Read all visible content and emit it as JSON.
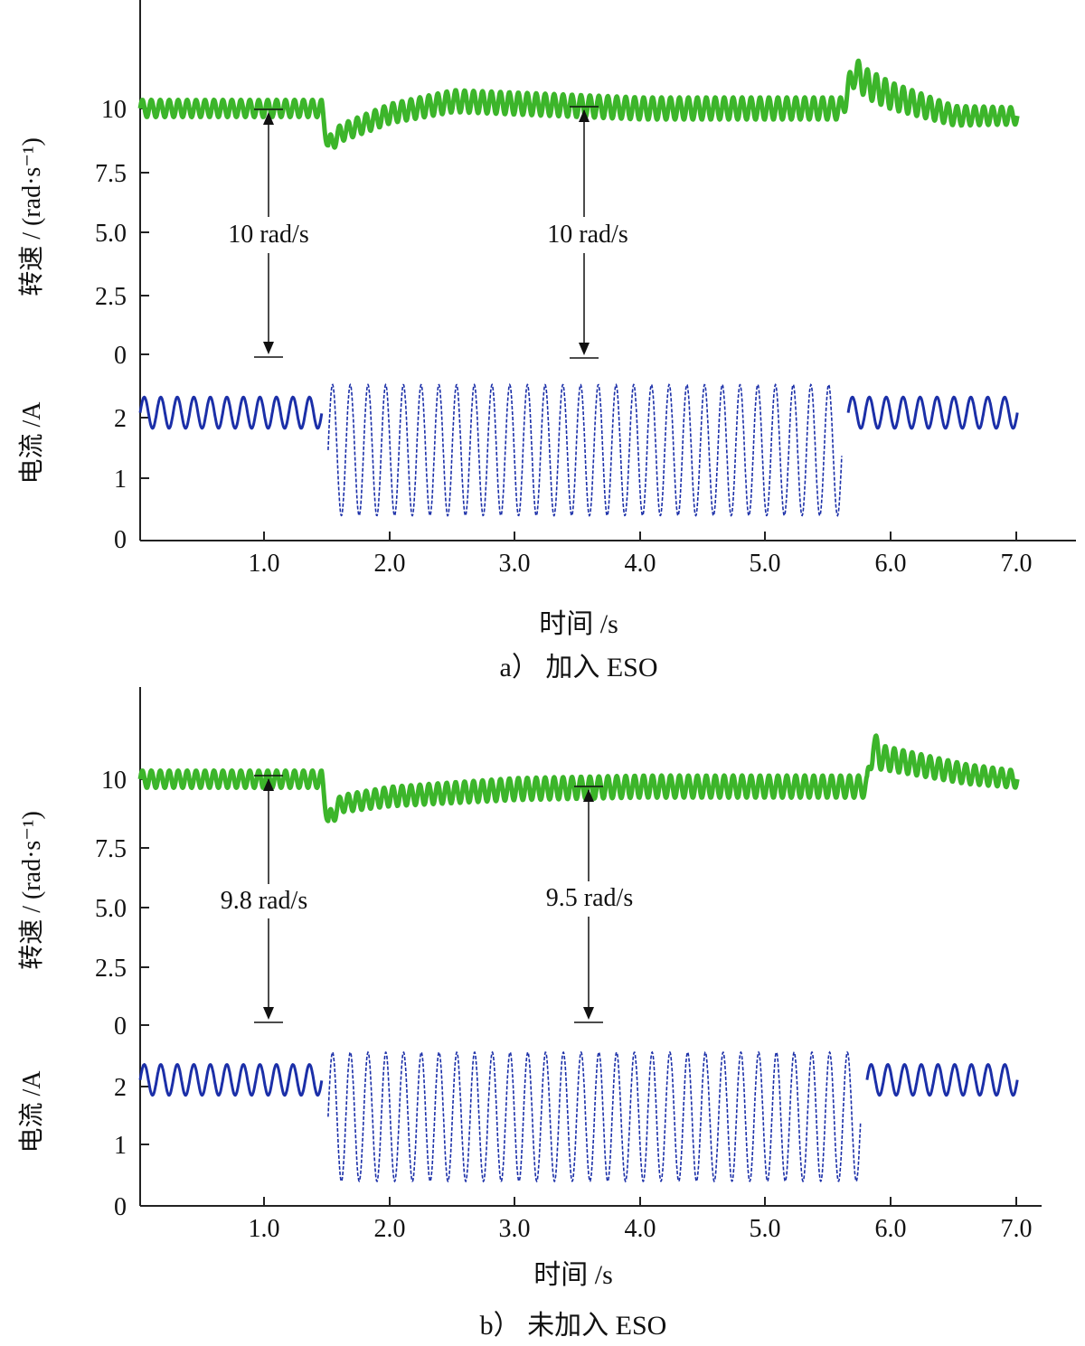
{
  "chart_data": [
    {
      "type": "line",
      "caption": "a） 加入 ESO",
      "xlabel": "时间 /s",
      "ylabel_speed": "转速 / (rad·s⁻¹)",
      "ylabel_current": "电流 /A",
      "xlim": [
        0.0,
        7.2
      ],
      "x_ticks": [
        "1.0",
        "2.0",
        "3.0",
        "4.0",
        "5.0",
        "6.0",
        "7.0"
      ],
      "speed_ticks": [
        "10",
        "7.5",
        "5.0",
        "2.5",
        "0"
      ],
      "current_ticks": [
        "2",
        "1",
        "0"
      ],
      "speed_color": "#3cb52a",
      "current_color": "#1b2fa8",
      "series": [
        {
          "name": "speed",
          "unit": "rad/s",
          "x": [
            0.0,
            1.45,
            1.5,
            1.6,
            2.0,
            2.5,
            3.0,
            4.0,
            5.0,
            5.6,
            5.7,
            5.8,
            6.0,
            6.5,
            7.0
          ],
          "y": [
            10.0,
            10.0,
            8.5,
            9.0,
            9.8,
            10.3,
            10.2,
            10.0,
            10.0,
            10.0,
            11.5,
            11.0,
            10.5,
            9.7,
            9.7
          ],
          "ripple_amplitude": [
            0.35,
            0.35,
            0.35,
            0.35,
            0.4,
            0.45,
            0.45,
            0.45,
            0.45,
            0.45,
            0.6,
            0.6,
            0.55,
            0.4,
            0.35
          ]
        },
        {
          "name": "current",
          "unit": "A",
          "segments": [
            {
              "x_start": 0.0,
              "x_end": 1.45,
              "center": 2.05,
              "amplitude": 0.25,
              "cycles": 11
            },
            {
              "x_start": 1.5,
              "x_end": 5.6,
              "center": 1.45,
              "amplitude": 1.05,
              "cycles": 29
            },
            {
              "x_start": 5.65,
              "x_end": 7.0,
              "center": 2.05,
              "amplitude": 0.25,
              "cycles": 10
            }
          ]
        }
      ],
      "annotations": [
        {
          "text": "10 rad/s",
          "x": 1.05,
          "speed_from": 0,
          "speed_to": 10.0
        },
        {
          "text": "10 rad/s",
          "x": 3.55,
          "speed_from": 0,
          "speed_to": 10.0
        }
      ]
    },
    {
      "type": "line",
      "caption": "b） 未加入 ESO",
      "xlabel": "时间 /s",
      "ylabel_speed": "转速 / (rad·s⁻¹)",
      "ylabel_current": "电流 /A",
      "xlim": [
        0.0,
        7.2
      ],
      "x_ticks": [
        "1.0",
        "2.0",
        "3.0",
        "4.0",
        "5.0",
        "6.0",
        "7.0"
      ],
      "speed_ticks": [
        "10",
        "7.5",
        "5.0",
        "2.5",
        "0"
      ],
      "current_ticks": [
        "2",
        "1",
        "0"
      ],
      "speed_color": "#3cb52a",
      "current_color": "#1b2fa8",
      "series": [
        {
          "name": "speed",
          "unit": "rad/s",
          "x": [
            0.0,
            1.45,
            1.5,
            1.6,
            2.0,
            3.0,
            4.0,
            5.0,
            5.8,
            5.85,
            5.9,
            6.2,
            6.6,
            7.0
          ],
          "y": [
            10.0,
            10.0,
            8.3,
            9.0,
            9.3,
            9.6,
            9.7,
            9.7,
            9.7,
            11.5,
            10.9,
            10.6,
            10.2,
            10.0
          ],
          "ripple_amplitude": [
            0.35,
            0.35,
            0.35,
            0.35,
            0.4,
            0.45,
            0.45,
            0.45,
            0.45,
            0.6,
            0.5,
            0.45,
            0.4,
            0.35
          ]
        },
        {
          "name": "current",
          "unit": "A",
          "segments": [
            {
              "x_start": 0.0,
              "x_end": 1.45,
              "center": 2.05,
              "amplitude": 0.25,
              "cycles": 11
            },
            {
              "x_start": 1.5,
              "x_end": 5.75,
              "center": 1.45,
              "amplitude": 1.05,
              "cycles": 30
            },
            {
              "x_start": 5.8,
              "x_end": 7.0,
              "center": 2.05,
              "amplitude": 0.25,
              "cycles": 9
            }
          ]
        }
      ],
      "annotations": [
        {
          "text": "9.8 rad/s",
          "x": 1.05,
          "speed_from": 0,
          "speed_to": 9.8
        },
        {
          "text": "9.5 rad/s",
          "x": 3.6,
          "speed_from": 0,
          "speed_to": 9.5
        }
      ]
    }
  ]
}
